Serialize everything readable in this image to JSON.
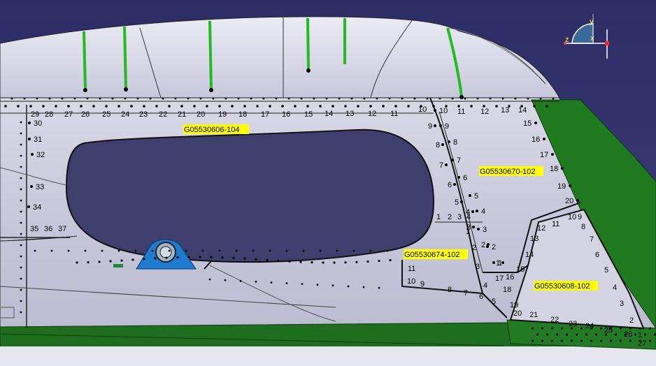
{
  "scene": {
    "background_top": "#2f2f6b",
    "skin_color": "#c9c9dc",
    "cutout_color": "#40406f",
    "green_color": "#1f7a1f",
    "fitting_color": "#1e7bd0"
  },
  "part_labels": {
    "p1": "G05530606-104",
    "p2": "G05530670-102",
    "p3": "G05530674-102",
    "p4": "G05530608-102",
    "highlight_color": "#ffff00"
  },
  "compass": {
    "axis_x": "x",
    "axis_y": "y",
    "axis_z": "z"
  },
  "top_row_numbers": [
    "29",
    "28",
    "27",
    "26",
    "25",
    "24",
    "23",
    "22",
    "21",
    "20",
    "19",
    "18",
    "17",
    "16",
    "15",
    "14",
    "13",
    "12",
    "11",
    "10"
  ],
  "left_column_numbers": [
    "30",
    "31",
    "32",
    "33",
    "34"
  ],
  "lower_row_numbers": [
    "35",
    "36",
    "37"
  ],
  "center_left_numbers": [
    "9",
    "8",
    "7",
    "6",
    "5",
    "4",
    "3",
    "2",
    "1"
  ],
  "center_right_numbers": [
    "10",
    "9",
    "8",
    "7",
    "6",
    "5",
    "4",
    "3",
    "2",
    "1"
  ],
  "mid_top_numbers": [
    "11",
    "12",
    "13",
    "14"
  ],
  "right_column_numbers": [
    "15",
    "16",
    "17",
    "18",
    "19",
    "20"
  ],
  "small_row_numbers": [
    "1",
    "2",
    "3",
    "4"
  ],
  "red_numbers": [
    "1",
    "2",
    "3",
    "11",
    "10",
    "9",
    "8",
    "7",
    "6",
    "4",
    "5"
  ],
  "yellow_numbers": [
    "12",
    "11",
    "10",
    "9",
    "8",
    "13",
    "7",
    "14",
    "6",
    "15",
    "5",
    "17",
    "16",
    "18",
    "4",
    "19",
    "3",
    "20",
    "21",
    "22",
    "23",
    "24",
    "25",
    "26",
    "2",
    "1",
    "27"
  ]
}
